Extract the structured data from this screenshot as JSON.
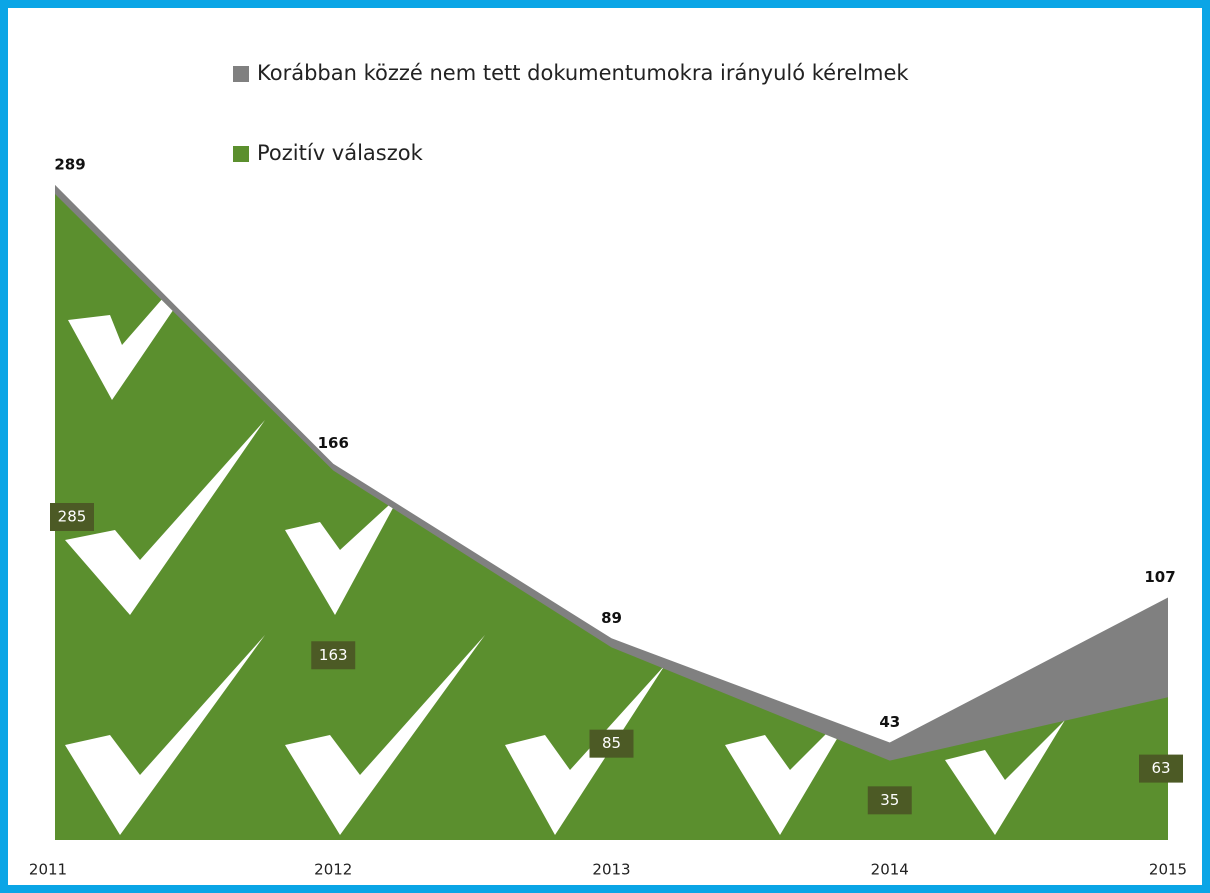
{
  "chart_data": {
    "type": "area",
    "categories": [
      "2011",
      "2012",
      "2013",
      "2014",
      "2015"
    ],
    "series": [
      {
        "name": "Korábban közzé nem tett dokumentumokra irányuló kérelmek",
        "color": "#808080",
        "values": [
          289,
          166,
          89,
          43,
          107
        ]
      },
      {
        "name": "Pozitív válaszok",
        "color": "#5b8f2e",
        "values": [
          285,
          163,
          85,
          35,
          63
        ]
      }
    ],
    "ylim": [
      0,
      300
    ]
  }
}
